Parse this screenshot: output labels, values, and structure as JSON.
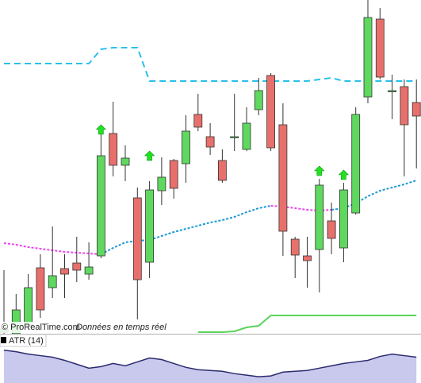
{
  "chart_data": [
    {
      "type": "candlestick",
      "up_color": "#5fd85f",
      "down_color": "#e8706c",
      "ylim": [
        0,
        420
      ],
      "open": [
        2,
        0,
        10,
        83,
        58,
        82,
        89,
        75,
        98,
        252,
        212,
        171,
        90,
        180,
        218,
        214,
        276,
        248,
        218,
        248,
        232,
        282,
        325,
        263,
        119,
        98,
        106,
        142,
        108,
        152,
        298,
        396,
        306,
        311,
        291
      ],
      "high": [
        80,
        50,
        75,
        100,
        135,
        100,
        122,
        115,
        255,
        292,
        237,
        184,
        192,
        222,
        220,
        275,
        302,
        265,
        232,
        302,
        285,
        322,
        328,
        290,
        122,
        122,
        195,
        165,
        190,
        285,
        420,
        410,
        326,
        320,
        320
      ],
      "low": [
        0,
        0,
        5,
        20,
        45,
        45,
        65,
        68,
        95,
        198,
        192,
        18,
        70,
        162,
        170,
        190,
        255,
        225,
        190,
        230,
        230,
        275,
        230,
        98,
        70,
        58,
        52,
        100,
        90,
        150,
        290,
        320,
        270,
        198,
        208
      ],
      "close": [
        6,
        30,
        58,
        30,
        73,
        75,
        80,
        84,
        224,
        212,
        221,
        68,
        181,
        197,
        183,
        255,
        260,
        235,
        193,
        248,
        265,
        306,
        234,
        129,
        99,
        92,
        187,
        120,
        181,
        276,
        398,
        323,
        306,
        263,
        274
      ],
      "series": [
        {
          "color": "#29c0ea",
          "style": "dashed",
          "values": [
            340,
            340,
            340,
            340,
            340,
            340,
            340,
            340,
            358,
            360,
            360,
            360,
            318,
            318,
            318,
            318,
            318,
            318,
            318,
            318,
            318,
            318,
            318,
            318,
            318,
            318,
            320,
            322,
            318,
            318,
            318,
            318,
            318,
            318,
            318
          ]
        },
        {
          "color": "#ee44ee",
          "style": "dotted",
          "values": [
            114,
            112,
            109,
            107,
            105,
            103,
            102,
            101,
            100,
            null,
            null,
            null,
            null,
            null,
            null,
            null,
            null,
            null,
            null,
            null,
            null,
            null,
            161,
            160,
            158,
            156,
            155,
            156,
            null,
            null,
            null,
            null,
            null,
            null,
            null
          ]
        },
        {
          "color": "#1e9ad6",
          "style": "dotted",
          "values": [
            null,
            null,
            null,
            null,
            null,
            null,
            null,
            null,
            100,
            108,
            115,
            117,
            118,
            123,
            128,
            132,
            136,
            140,
            143,
            147,
            153,
            158,
            161,
            null,
            null,
            null,
            null,
            156,
            158,
            164,
            173,
            180,
            184,
            188,
            193
          ]
        },
        {
          "color": "#5ad35a",
          "style": "solid",
          "values": [
            null,
            null,
            null,
            null,
            null,
            null,
            null,
            null,
            null,
            null,
            null,
            null,
            null,
            null,
            null,
            null,
            2,
            2,
            2,
            3,
            8,
            10,
            23,
            23,
            23,
            23,
            23,
            23,
            23,
            23,
            23,
            23,
            23,
            23,
            23
          ]
        }
      ],
      "arrows": {
        "color": "#22e022",
        "values": [
          null,
          null,
          null,
          null,
          null,
          null,
          null,
          null,
          263,
          null,
          null,
          null,
          230,
          null,
          null,
          null,
          null,
          null,
          null,
          null,
          null,
          null,
          null,
          null,
          null,
          null,
          211,
          null,
          206,
          null,
          null,
          null,
          null,
          null,
          null
        ]
      }
    },
    {
      "type": "area",
      "title": "ATR (14)",
      "color": "#c9c9ee",
      "line_color": "#2b2b6e",
      "ylim": [
        0,
        62
      ],
      "values": [
        42,
        40,
        37,
        35,
        33,
        29,
        24,
        19,
        21,
        25,
        22,
        27,
        32,
        30,
        25,
        20,
        17,
        16,
        15,
        12,
        10,
        8,
        9,
        14,
        15,
        16,
        19,
        22,
        25,
        27,
        29,
        34,
        37,
        35,
        33
      ]
    }
  ],
  "footer": {
    "source": "© ProRealTime.com",
    "note": "Données en temps réel"
  }
}
